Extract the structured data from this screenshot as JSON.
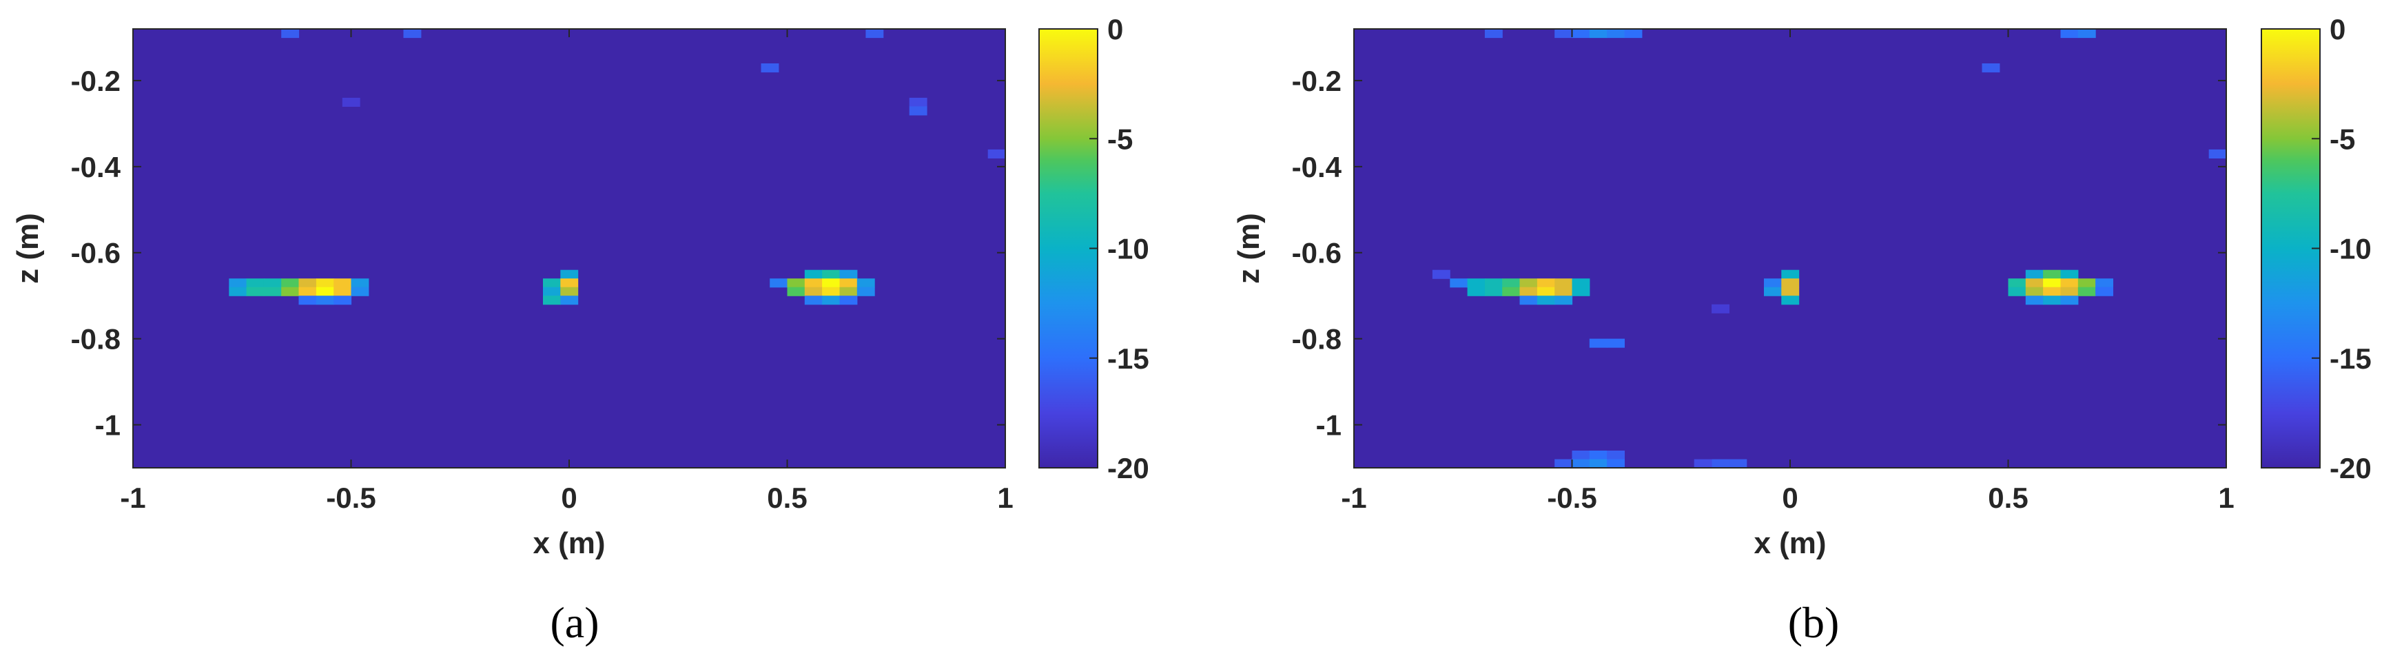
{
  "chart_data": [
    {
      "type": "heatmap",
      "caption": "(a)",
      "xlabel": "x (m)",
      "ylabel": "z (m)",
      "xlim": [
        -1,
        1
      ],
      "ylim": [
        -1.1,
        -0.08
      ],
      "xticks": [
        -1,
        -0.5,
        0,
        0.5,
        1
      ],
      "xtick_labels": [
        "-1",
        "-0.5",
        "0",
        "0.5",
        "1"
      ],
      "yticks": [
        -0.2,
        -0.4,
        -0.6,
        -0.8,
        -1
      ],
      "ytick_labels": [
        "-0.2",
        "-0.4",
        "-0.6",
        "-0.8",
        "-1"
      ],
      "colorbar": {
        "range": [
          -20,
          0
        ],
        "ticks": [
          0,
          -5,
          -10,
          -15,
          -20
        ],
        "tick_labels": [
          "0",
          "-5",
          "-10",
          "-15",
          "-20"
        ],
        "colormap": "parula"
      },
      "background_value": -20,
      "cell_size": [
        0.04,
        0.02
      ],
      "cells": [
        {
          "x": -0.76,
          "z": -0.67,
          "v": -12
        },
        {
          "x": -0.72,
          "z": -0.67,
          "v": -9
        },
        {
          "x": -0.68,
          "z": -0.67,
          "v": -9
        },
        {
          "x": -0.64,
          "z": -0.67,
          "v": -6
        },
        {
          "x": -0.6,
          "z": -0.67,
          "v": -3
        },
        {
          "x": -0.56,
          "z": -0.67,
          "v": -1
        },
        {
          "x": -0.52,
          "z": -0.67,
          "v": -2
        },
        {
          "x": -0.48,
          "z": -0.67,
          "v": -12
        },
        {
          "x": -0.76,
          "z": -0.69,
          "v": -11
        },
        {
          "x": -0.72,
          "z": -0.69,
          "v": -8
        },
        {
          "x": -0.68,
          "z": -0.69,
          "v": -8
        },
        {
          "x": -0.64,
          "z": -0.69,
          "v": -5
        },
        {
          "x": -0.6,
          "z": -0.69,
          "v": -2
        },
        {
          "x": -0.56,
          "z": -0.69,
          "v": 0
        },
        {
          "x": -0.52,
          "z": -0.69,
          "v": -2
        },
        {
          "x": -0.48,
          "z": -0.69,
          "v": -13
        },
        {
          "x": -0.6,
          "z": -0.71,
          "v": -15
        },
        {
          "x": -0.56,
          "z": -0.71,
          "v": -14
        },
        {
          "x": -0.52,
          "z": -0.71,
          "v": -15
        },
        {
          "x": 0.0,
          "z": -0.65,
          "v": -11
        },
        {
          "x": -0.04,
          "z": -0.67,
          "v": -9
        },
        {
          "x": 0.0,
          "z": -0.67,
          "v": -2
        },
        {
          "x": -0.04,
          "z": -0.69,
          "v": -11
        },
        {
          "x": 0.0,
          "z": -0.69,
          "v": -4
        },
        {
          "x": -0.04,
          "z": -0.71,
          "v": -9
        },
        {
          "x": 0.0,
          "z": -0.71,
          "v": -13
        },
        {
          "x": 0.56,
          "z": -0.65,
          "v": -10
        },
        {
          "x": 0.6,
          "z": -0.65,
          "v": -8
        },
        {
          "x": 0.64,
          "z": -0.65,
          "v": -12
        },
        {
          "x": 0.48,
          "z": -0.67,
          "v": -14
        },
        {
          "x": 0.52,
          "z": -0.67,
          "v": -5
        },
        {
          "x": 0.56,
          "z": -0.67,
          "v": -2
        },
        {
          "x": 0.6,
          "z": -0.67,
          "v": 0
        },
        {
          "x": 0.64,
          "z": -0.67,
          "v": -2
        },
        {
          "x": 0.68,
          "z": -0.67,
          "v": -12
        },
        {
          "x": 0.52,
          "z": -0.69,
          "v": -6
        },
        {
          "x": 0.56,
          "z": -0.69,
          "v": -3
        },
        {
          "x": 0.6,
          "z": -0.69,
          "v": -1
        },
        {
          "x": 0.64,
          "z": -0.69,
          "v": -4
        },
        {
          "x": 0.68,
          "z": -0.69,
          "v": -13
        },
        {
          "x": 0.56,
          "z": -0.71,
          "v": -14
        },
        {
          "x": 0.6,
          "z": -0.71,
          "v": -12
        },
        {
          "x": 0.64,
          "z": -0.71,
          "v": -15
        },
        {
          "x": -0.64,
          "z": -0.09,
          "v": -16
        },
        {
          "x": -0.36,
          "z": -0.09,
          "v": -16
        },
        {
          "x": 0.7,
          "z": -0.09,
          "v": -16
        },
        {
          "x": 0.46,
          "z": -0.17,
          "v": -16
        },
        {
          "x": 0.8,
          "z": -0.25,
          "v": -17
        },
        {
          "x": 0.8,
          "z": -0.27,
          "v": -16
        },
        {
          "x": -0.5,
          "z": -0.25,
          "v": -18
        },
        {
          "x": 0.98,
          "z": -0.37,
          "v": -17
        }
      ]
    },
    {
      "type": "heatmap",
      "caption": "(b)",
      "xlabel": "x (m)",
      "ylabel": "z (m)",
      "xlim": [
        -1,
        1
      ],
      "ylim": [
        -1.1,
        -0.08
      ],
      "xticks": [
        -1,
        -0.5,
        0,
        0.5,
        1
      ],
      "xtick_labels": [
        "-1",
        "-0.5",
        "0",
        "0.5",
        "1"
      ],
      "yticks": [
        -0.2,
        -0.4,
        -0.6,
        -0.8,
        -1
      ],
      "ytick_labels": [
        "-0.2",
        "-0.4",
        "-0.6",
        "-0.8",
        "-1"
      ],
      "colorbar": {
        "range": [
          -20,
          0
        ],
        "ticks": [
          0,
          -5,
          -10,
          -15,
          -20
        ],
        "tick_labels": [
          "0",
          "-5",
          "-10",
          "-15",
          "-20"
        ],
        "colormap": "parula"
      },
      "background_value": -20,
      "cell_size": [
        0.04,
        0.02
      ],
      "cells": [
        {
          "x": -0.8,
          "z": -0.65,
          "v": -17
        },
        {
          "x": -0.76,
          "z": -0.67,
          "v": -14
        },
        {
          "x": -0.72,
          "z": -0.67,
          "v": -10
        },
        {
          "x": -0.68,
          "z": -0.67,
          "v": -9
        },
        {
          "x": -0.64,
          "z": -0.67,
          "v": -7
        },
        {
          "x": -0.6,
          "z": -0.67,
          "v": -4
        },
        {
          "x": -0.56,
          "z": -0.67,
          "v": -2
        },
        {
          "x": -0.52,
          "z": -0.67,
          "v": -3
        },
        {
          "x": -0.48,
          "z": -0.67,
          "v": -10
        },
        {
          "x": -0.72,
          "z": -0.69,
          "v": -10
        },
        {
          "x": -0.68,
          "z": -0.69,
          "v": -9
        },
        {
          "x": -0.64,
          "z": -0.69,
          "v": -6
        },
        {
          "x": -0.6,
          "z": -0.69,
          "v": -3
        },
        {
          "x": -0.56,
          "z": -0.69,
          "v": -1
        },
        {
          "x": -0.52,
          "z": -0.69,
          "v": -3
        },
        {
          "x": -0.48,
          "z": -0.69,
          "v": -10
        },
        {
          "x": -0.6,
          "z": -0.71,
          "v": -14
        },
        {
          "x": -0.56,
          "z": -0.71,
          "v": -11
        },
        {
          "x": -0.52,
          "z": -0.71,
          "v": -12
        },
        {
          "x": 0.0,
          "z": -0.65,
          "v": -10
        },
        {
          "x": -0.04,
          "z": -0.67,
          "v": -14
        },
        {
          "x": 0.0,
          "z": -0.67,
          "v": -3
        },
        {
          "x": -0.04,
          "z": -0.69,
          "v": -12
        },
        {
          "x": 0.0,
          "z": -0.69,
          "v": -3
        },
        {
          "x": 0.0,
          "z": -0.71,
          "v": -10
        },
        {
          "x": 0.56,
          "z": -0.65,
          "v": -11
        },
        {
          "x": 0.6,
          "z": -0.65,
          "v": -6
        },
        {
          "x": 0.64,
          "z": -0.65,
          "v": -10
        },
        {
          "x": 0.52,
          "z": -0.67,
          "v": -8
        },
        {
          "x": 0.56,
          "z": -0.67,
          "v": -3
        },
        {
          "x": 0.6,
          "z": -0.67,
          "v": 0
        },
        {
          "x": 0.64,
          "z": -0.67,
          "v": -2
        },
        {
          "x": 0.68,
          "z": -0.67,
          "v": -5
        },
        {
          "x": 0.72,
          "z": -0.67,
          "v": -14
        },
        {
          "x": 0.52,
          "z": -0.69,
          "v": -9
        },
        {
          "x": 0.56,
          "z": -0.69,
          "v": -4
        },
        {
          "x": 0.6,
          "z": -0.69,
          "v": -2
        },
        {
          "x": 0.64,
          "z": -0.69,
          "v": -3
        },
        {
          "x": 0.68,
          "z": -0.69,
          "v": -6
        },
        {
          "x": 0.72,
          "z": -0.69,
          "v": -15
        },
        {
          "x": 0.56,
          "z": -0.71,
          "v": -13
        },
        {
          "x": 0.6,
          "z": -0.71,
          "v": -11
        },
        {
          "x": 0.64,
          "z": -0.71,
          "v": -13
        },
        {
          "x": -0.44,
          "z": -0.81,
          "v": -15
        },
        {
          "x": -0.4,
          "z": -0.81,
          "v": -15
        },
        {
          "x": -0.48,
          "z": -1.07,
          "v": -16
        },
        {
          "x": -0.44,
          "z": -1.07,
          "v": -15
        },
        {
          "x": -0.4,
          "z": -1.07,
          "v": -16
        },
        {
          "x": -0.52,
          "z": -1.09,
          "v": -16
        },
        {
          "x": -0.48,
          "z": -1.09,
          "v": -14
        },
        {
          "x": -0.44,
          "z": -1.09,
          "v": -13
        },
        {
          "x": -0.4,
          "z": -1.09,
          "v": -15
        },
        {
          "x": -0.16,
          "z": -1.09,
          "v": -16
        },
        {
          "x": -0.12,
          "z": -1.09,
          "v": -16
        },
        {
          "x": -0.2,
          "z": -1.09,
          "v": -17
        },
        {
          "x": -0.68,
          "z": -0.09,
          "v": -16
        },
        {
          "x": -0.52,
          "z": -0.09,
          "v": -16
        },
        {
          "x": -0.48,
          "z": -0.09,
          "v": -15
        },
        {
          "x": -0.44,
          "z": -0.09,
          "v": -13
        },
        {
          "x": -0.4,
          "z": -0.09,
          "v": -14
        },
        {
          "x": -0.36,
          "z": -0.09,
          "v": -15
        },
        {
          "x": 0.64,
          "z": -0.09,
          "v": -15
        },
        {
          "x": 0.68,
          "z": -0.09,
          "v": -14
        },
        {
          "x": 0.46,
          "z": -0.17,
          "v": -16
        },
        {
          "x": 0.98,
          "z": -0.37,
          "v": -16
        },
        {
          "x": -0.16,
          "z": -0.73,
          "v": -18
        }
      ]
    }
  ]
}
